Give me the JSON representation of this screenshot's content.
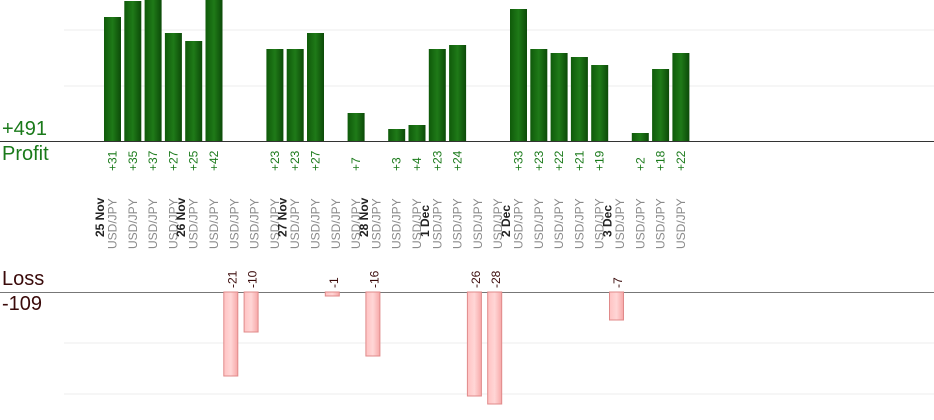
{
  "chart_data": {
    "type": "bar",
    "pair_label": "USD/JPY",
    "profit": {
      "label": "Profit",
      "total": "+491"
    },
    "loss": {
      "label": "Loss",
      "total": "-109"
    },
    "dates": [
      "25 Nov",
      "26 Nov",
      "27 Nov",
      "28 Nov",
      "1 Dec",
      "2 Dec",
      "3 Dec"
    ],
    "trades": [
      {
        "date": "25 Nov",
        "value": 31
      },
      {
        "date": "25 Nov",
        "value": 35
      },
      {
        "date": "25 Nov",
        "value": 37
      },
      {
        "date": "25 Nov",
        "value": 27
      },
      {
        "date": "26 Nov",
        "value": 25
      },
      {
        "date": "26 Nov",
        "value": 42
      },
      {
        "date": "26 Nov",
        "value": -21
      },
      {
        "date": "26 Nov",
        "value": -10
      },
      {
        "date": "26 Nov",
        "value": 23
      },
      {
        "date": "27 Nov",
        "value": 23
      },
      {
        "date": "27 Nov",
        "value": 27
      },
      {
        "date": "27 Nov",
        "value": -1
      },
      {
        "date": "27 Nov",
        "value": 7
      },
      {
        "date": "28 Nov",
        "value": -16
      },
      {
        "date": "28 Nov",
        "value": 3
      },
      {
        "date": "28 Nov",
        "value": 4
      },
      {
        "date": "1 Dec",
        "value": 23
      },
      {
        "date": "1 Dec",
        "value": 24
      },
      {
        "date": "1 Dec",
        "value": -26
      },
      {
        "date": "1 Dec",
        "value": -28
      },
      {
        "date": "2 Dec",
        "value": 33
      },
      {
        "date": "2 Dec",
        "value": 23
      },
      {
        "date": "2 Dec",
        "value": 22
      },
      {
        "date": "2 Dec",
        "value": 21
      },
      {
        "date": "2 Dec",
        "value": 19
      },
      {
        "date": "3 Dec",
        "value": -7
      },
      {
        "date": "3 Dec",
        "value": 2
      },
      {
        "date": "3 Dec",
        "value": 18
      },
      {
        "date": "3 Dec",
        "value": 22
      }
    ],
    "colors": {
      "profit": "#1a6e12",
      "profit_dark": "#0b4d06",
      "loss": "#ffb3b3",
      "loss_border": "#e08a8a",
      "profit_text": "#1a7a1a",
      "loss_text": "#3a0a0a",
      "pair_text": "#8a8a8a",
      "grid": "#eeeeee"
    }
  }
}
